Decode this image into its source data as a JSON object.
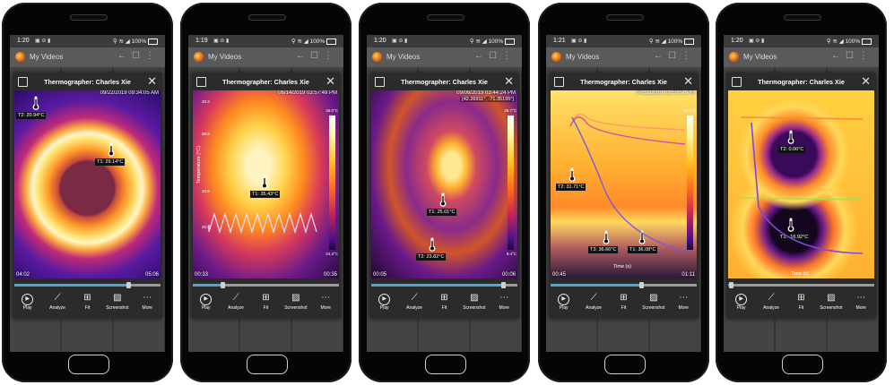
{
  "phones": [
    {
      "status": {
        "time": "1:20",
        "battery": "100%"
      },
      "app": {
        "title": "My Videos"
      },
      "dialog": {
        "title": "Thermographer: Charles Xie"
      },
      "timestamp": "09/22/2019 09:34:05 AM",
      "labels": [
        {
          "text": "T2: 20.94°C"
        },
        {
          "text": "T1: 29.14°C"
        }
      ],
      "time_start": "04:02",
      "time_end": "05:06",
      "seek": 0.78
    },
    {
      "status": {
        "time": "1:19",
        "battery": "100%"
      },
      "app": {
        "title": "My Videos"
      },
      "dialog": {
        "title": "Thermographer: Charles Xie"
      },
      "timestamp": "06/14/2019 03:57:49 PM",
      "labels": [
        {
          "text": "T1: 35.43°C"
        }
      ],
      "axis_label": "Temperature (°C)",
      "ticks": [
        "40.3",
        "38.5",
        "33.6",
        "25.9"
      ],
      "scale_top": "36.0°C",
      "scale_bottom": "24.3°C",
      "time_start": "00:33",
      "time_end": "00:35",
      "seek": 0.2
    },
    {
      "status": {
        "time": "1:20",
        "battery": "100%"
      },
      "app": {
        "title": "My Videos"
      },
      "dialog": {
        "title": "Thermographer: Charles Xie"
      },
      "timestamp": "09/08/2019 03:44:24 PM",
      "coords": "[42.26911°, -71.35195°]",
      "labels": [
        {
          "text": "T1: 25.01°C"
        },
        {
          "text": "T2: 23.82°C"
        }
      ],
      "scale_top": "26.7°C",
      "scale_bottom": "9.4°C",
      "time_start": "00:05",
      "time_end": "00:06",
      "seek": 0.9
    },
    {
      "status": {
        "time": "1:21",
        "battery": "100%"
      },
      "app": {
        "title": "My Videos"
      },
      "dialog": {
        "title": "Thermographer: Charles Xie"
      },
      "timestamp": "07/31/2019 01:55:51 PM",
      "labels": [
        {
          "text": "T3: 36.66°C"
        },
        {
          "text": "T1: 36.08°C"
        },
        {
          "text": "T2: 31.71°C"
        }
      ],
      "xaxis_label": "Time (s)",
      "scale_top": "37.5°C",
      "time_start": "00:45",
      "time_end": "01:11",
      "seek": 0.62
    },
    {
      "status": {
        "time": "1:20",
        "battery": "100%"
      },
      "app": {
        "title": "My Videos"
      },
      "dialog": {
        "title": "Thermographer: Charles Xie"
      },
      "labels": [
        {
          "text": "T2: 0.06°C"
        },
        {
          "text": "T1: -16.92°C"
        }
      ],
      "xaxis_label": "Time (s)",
      "seek": 0.02
    }
  ],
  "controls": [
    {
      "label": "Play",
      "icon": "play-icon"
    },
    {
      "label": "Analyze",
      "icon": "trend-icon"
    },
    {
      "label": "Fit",
      "icon": "fit-icon"
    },
    {
      "label": "Screenshot",
      "icon": "image-icon"
    },
    {
      "label": "More",
      "icon": "more-icon"
    }
  ]
}
